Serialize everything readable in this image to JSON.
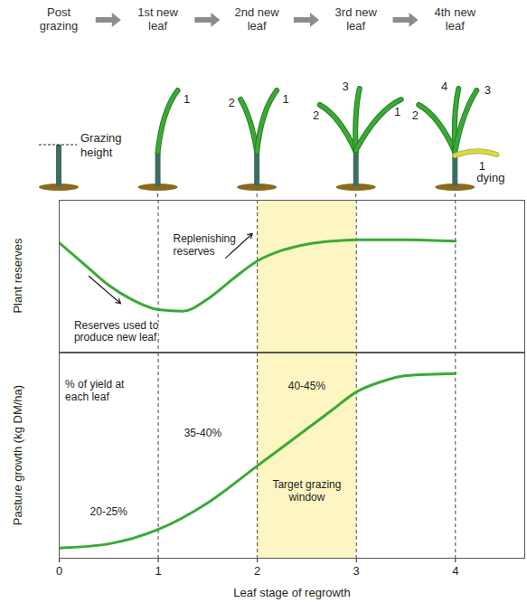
{
  "diagram": {
    "stages": [
      {
        "label": "Post grazing",
        "leaves": [],
        "note": "Grazing height"
      },
      {
        "label": "1st new leaf",
        "leaves": [
          {
            "label": "1"
          }
        ]
      },
      {
        "label": "2nd new leaf",
        "leaves": [
          {
            "label": "2"
          },
          {
            "label": "1"
          }
        ]
      },
      {
        "label": "3rd new leaf",
        "leaves": [
          {
            "label": "2"
          },
          {
            "label": "3"
          },
          {
            "label": "1"
          }
        ]
      },
      {
        "label": "4th new leaf",
        "leaves": [
          {
            "label": "2"
          },
          {
            "label": "4"
          },
          {
            "label": "3"
          },
          {
            "label": "1",
            "note": "dying"
          }
        ]
      }
    ]
  },
  "chart_data": [
    {
      "type": "line",
      "y_label": "Plant reserves",
      "x": [
        0,
        0.25,
        0.5,
        0.75,
        1,
        1.25,
        1.5,
        1.75,
        2,
        2.25,
        2.5,
        2.75,
        3,
        3.5,
        4
      ],
      "values": [
        72,
        58,
        44,
        34,
        28,
        27,
        35,
        48,
        60,
        67,
        71,
        73,
        74,
        74,
        73
      ],
      "color": "#3aaa35",
      "xlim": [
        0,
        4.7
      ],
      "xticks": [
        0,
        1,
        2,
        3,
        4
      ],
      "ylim": [
        0,
        100
      ],
      "grid": true,
      "tick_labels": false,
      "annotations": [
        "Replenishing reserves",
        "Reserves used to produce new leaf"
      ],
      "highlight": {
        "x": [
          2,
          3
        ]
      }
    },
    {
      "type": "line",
      "y_label": "Pasture growth (kg DM/ha)",
      "x_label": "Leaf stage of regrowth",
      "x": [
        0,
        0.5,
        1,
        1.5,
        2,
        2.5,
        2.75,
        3,
        3.25,
        3.5,
        4
      ],
      "values": [
        5,
        7,
        14,
        27,
        45,
        63,
        72,
        81,
        86,
        89,
        90
      ],
      "color": "#3aaa35",
      "xlim": [
        0,
        4.7
      ],
      "xticks": [
        0,
        1,
        2,
        3,
        4
      ],
      "ylim": [
        0,
        100
      ],
      "grid": true,
      "tick_labels": "x",
      "annotations": [
        "% of yield at each leaf",
        "20-25%",
        "35-40%",
        "40-45%"
      ],
      "highlight": {
        "x": [
          2,
          3
        ],
        "label": "Target grazing window"
      }
    }
  ]
}
